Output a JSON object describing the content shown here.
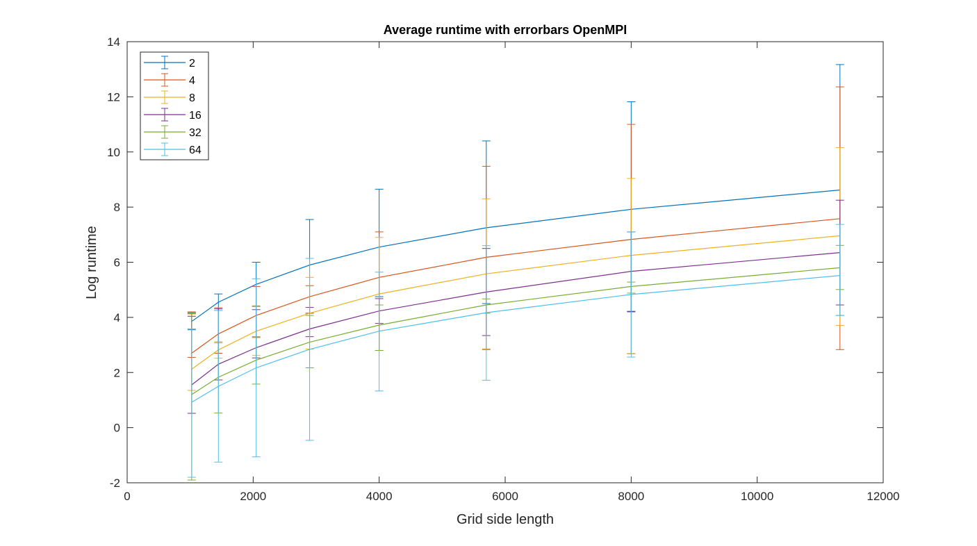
{
  "chart_data": {
    "type": "line",
    "title": "Average runtime with errorbars OpenMPI",
    "xlabel": "Grid side length",
    "ylabel": "Log runtime",
    "xlim": [
      0,
      12000
    ],
    "ylim": [
      -2,
      14
    ],
    "xticks": [
      0,
      2000,
      4000,
      6000,
      8000,
      10000,
      12000
    ],
    "yticks": [
      -2,
      0,
      2,
      4,
      6,
      8,
      10,
      12,
      14
    ],
    "xtick_labels": [
      "0",
      "2000",
      "4000",
      "6000",
      "8000",
      "10000",
      "12000"
    ],
    "ytick_labels": [
      "-2",
      "0",
      "2",
      "4",
      "6",
      "8",
      "10",
      "12",
      "14"
    ],
    "grid": false,
    "legend_position": "top-left",
    "x": [
      1024,
      1448,
      2048,
      2896,
      4000,
      5700,
      8000,
      11314
    ],
    "series": [
      {
        "name": "2",
        "color": "#0072BD",
        "values": [
          3.85,
          4.55,
          5.2,
          5.9,
          6.55,
          7.25,
          7.92,
          8.62
        ],
        "err_low": [
          0.3,
          0.3,
          0.8,
          1.75,
          1.8,
          2.75,
          3.7,
          4.55
        ],
        "err_high": [
          0.3,
          0.3,
          0.8,
          1.65,
          2.1,
          3.15,
          3.9,
          4.55
        ]
      },
      {
        "name": "4",
        "color": "#D95319",
        "values": [
          2.7,
          3.4,
          4.07,
          4.75,
          5.45,
          6.18,
          6.83,
          7.58
        ],
        "err_low": [
          0.15,
          0.7,
          0.8,
          0.6,
          2.65,
          3.35,
          4.15,
          4.75
        ],
        "err_high": [
          1.5,
          0.95,
          1.05,
          0.4,
          1.65,
          3.3,
          4.17,
          4.78
        ]
      },
      {
        "name": "8",
        "color": "#EDB120",
        "values": [
          2.12,
          2.82,
          3.5,
          4.15,
          4.85,
          5.58,
          6.25,
          6.96
        ],
        "err_low": [
          0.77,
          0.3,
          0.88,
          1.3,
          2.05,
          2.72,
          3.56,
          3.25
        ],
        "err_high": [
          2.0,
          0.3,
          0.92,
          1.3,
          2.05,
          2.72,
          2.79,
          3.2
        ]
      },
      {
        "name": "16",
        "color": "#7E2F8E",
        "values": [
          1.55,
          2.3,
          2.9,
          3.58,
          4.23,
          4.92,
          5.67,
          6.35
        ],
        "err_low": [
          1.03,
          0.57,
          0.37,
          0.28,
          0.45,
          1.58,
          1.47,
          1.9
        ],
        "err_high": [
          2.49,
          2.01,
          1.38,
          0.78,
          0.45,
          1.58,
          1.43,
          1.9
        ]
      },
      {
        "name": "32",
        "color": "#77AC30",
        "values": [
          1.2,
          1.83,
          2.45,
          3.1,
          3.72,
          4.45,
          5.12,
          5.8
        ],
        "err_low": [
          3.1,
          1.3,
          0.87,
          0.93,
          0.92,
          0.3,
          0.24,
          0.79
        ],
        "err_high": [
          2.97,
          1.25,
          0.85,
          0.97,
          0.73,
          0.22,
          0.16,
          0.81
        ]
      },
      {
        "name": "64",
        "color": "#4DBEEE",
        "values": [
          0.92,
          1.5,
          2.17,
          2.84,
          3.5,
          4.17,
          4.83,
          5.52
        ],
        "err_low": [
          2.72,
          2.75,
          3.23,
          3.3,
          2.17,
          2.45,
          2.27,
          1.45
        ],
        "err_high": [
          2.66,
          2.75,
          3.23,
          3.3,
          2.14,
          2.43,
          2.27,
          1.85
        ]
      }
    ]
  }
}
